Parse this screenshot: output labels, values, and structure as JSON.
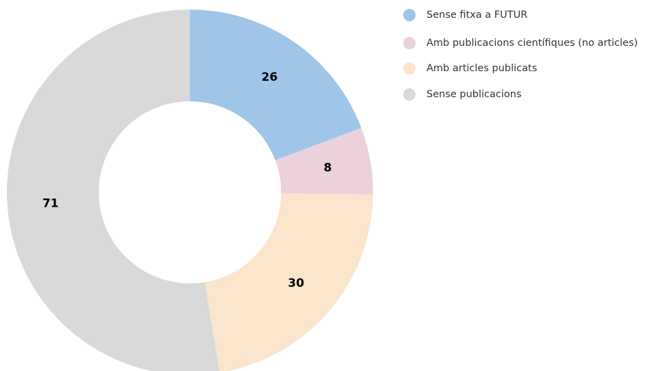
{
  "chart_data": {
    "type": "donut",
    "categories": [
      "Sense fitxa a FUTUR",
      "Amb publicacions científiques (no articles)",
      "Amb articles publicats",
      "Sense publicacions"
    ],
    "values": [
      26,
      8,
      30,
      71
    ],
    "colors": [
      "#9fc5e8",
      "#ead1dc",
      "#fce5cd",
      "#d9d9d9"
    ],
    "legend": "right"
  }
}
